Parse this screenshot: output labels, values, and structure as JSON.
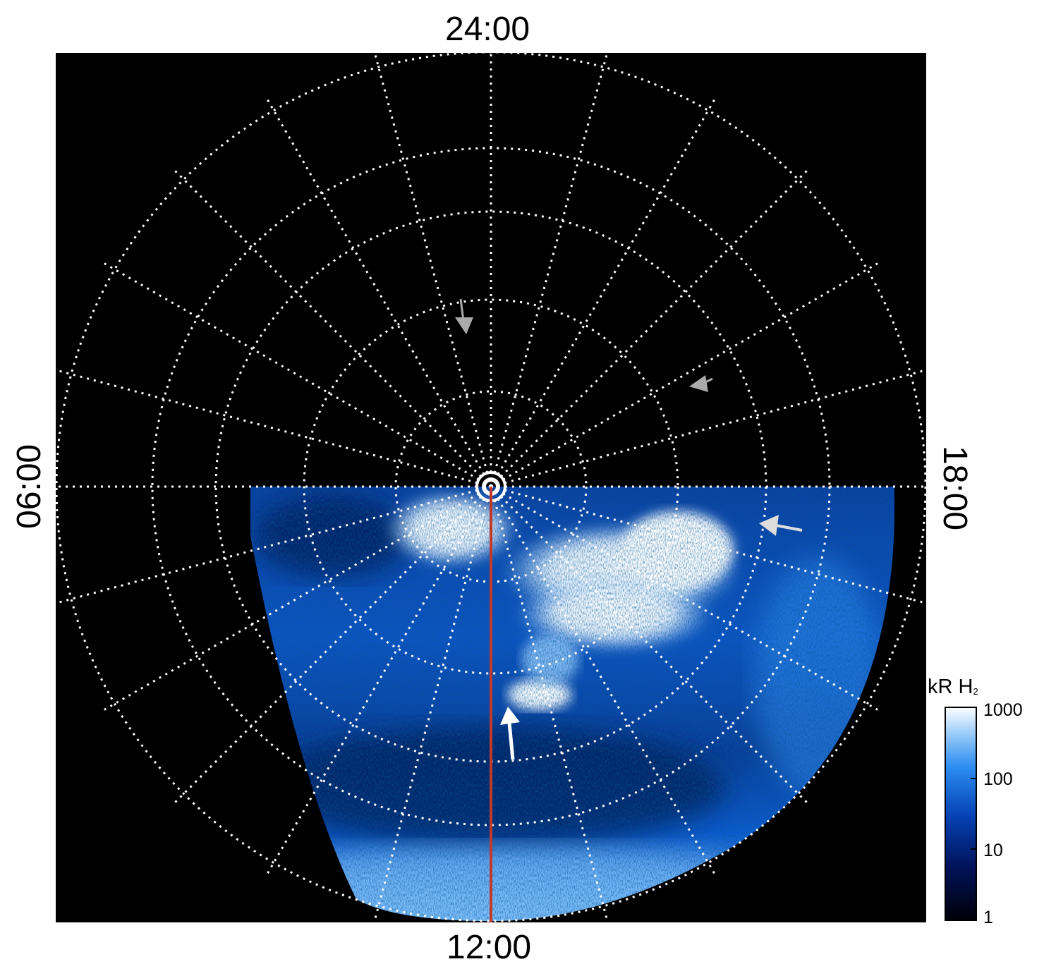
{
  "labels": {
    "top": "24:00",
    "bottom": "12:00",
    "left": "06:00",
    "right": "18:00"
  },
  "colorbar": {
    "title_main": "kR H",
    "title_sub": "2",
    "ticks": [
      "1000",
      "100",
      "10",
      "1"
    ],
    "colors": [
      "#000010",
      "#001a66",
      "#0a5fd6",
      "#3ea0f5",
      "#ffffff"
    ]
  },
  "image": {
    "background": "#000000",
    "grid_color": "#ffffff",
    "meridian_color": "#c0392b",
    "arrow_color_bright": "#ffffff",
    "arrow_color_dim": "#aaaaaa"
  }
}
